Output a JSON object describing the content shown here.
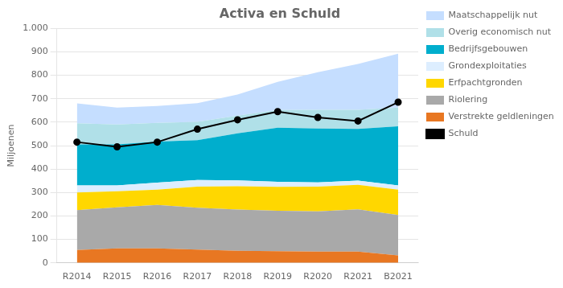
{
  "chart_data": {
    "type": "area",
    "title": "Activa en Schuld",
    "ylabel": "Miljoenen",
    "categories": [
      "R2014",
      "R2015",
      "R2016",
      "R2017",
      "R2018",
      "R2019",
      "R2020",
      "R2021",
      "B2021"
    ],
    "stacked": true,
    "series": [
      {
        "name": "Verstrekte geldleningen",
        "type": "area",
        "color": "#E87722",
        "values": [
          55,
          62,
          62,
          57,
          52,
          50,
          48,
          48,
          32
        ]
      },
      {
        "name": "Riolering",
        "type": "area",
        "color": "#A9A9A9",
        "values": [
          170,
          175,
          185,
          178,
          175,
          172,
          172,
          180,
          172
        ]
      },
      {
        "name": "Erfpachtgronden",
        "type": "area",
        "color": "#FFD700",
        "values": [
          75,
          68,
          65,
          90,
          100,
          102,
          105,
          105,
          108
        ]
      },
      {
        "name": "Grondexploitaties",
        "type": "area",
        "color": "#DDEEFF",
        "values": [
          30,
          25,
          30,
          28,
          25,
          22,
          18,
          18,
          18
        ]
      },
      {
        "name": "Bedrijfsgebouwen",
        "type": "area",
        "color": "#00AECD",
        "values": [
          175,
          175,
          175,
          170,
          200,
          230,
          230,
          220,
          252
        ]
      },
      {
        "name": "Overig economisch nut",
        "type": "area",
        "color": "#B0E0E8",
        "values": [
          90,
          85,
          80,
          78,
          76,
          76,
          80,
          82,
          80
        ]
      },
      {
        "name": "Maatschappelijk nut",
        "type": "area",
        "color": "#C5DEFF",
        "values": [
          85,
          72,
          72,
          80,
          90,
          120,
          160,
          195,
          230
        ]
      },
      {
        "name": "Schuld",
        "type": "line",
        "color": "#000000",
        "marker": "circle",
        "line_style": "solid",
        "values": [
          515,
          495,
          515,
          570,
          610,
          645,
          620,
          605,
          685
        ]
      }
    ],
    "ylim": [
      0,
      1000
    ],
    "yticks": [
      0,
      100,
      200,
      300,
      400,
      500,
      600,
      700,
      800,
      900,
      {
        "value": 1000,
        "label": "1.000"
      }
    ],
    "grid": true,
    "legend": "right"
  }
}
